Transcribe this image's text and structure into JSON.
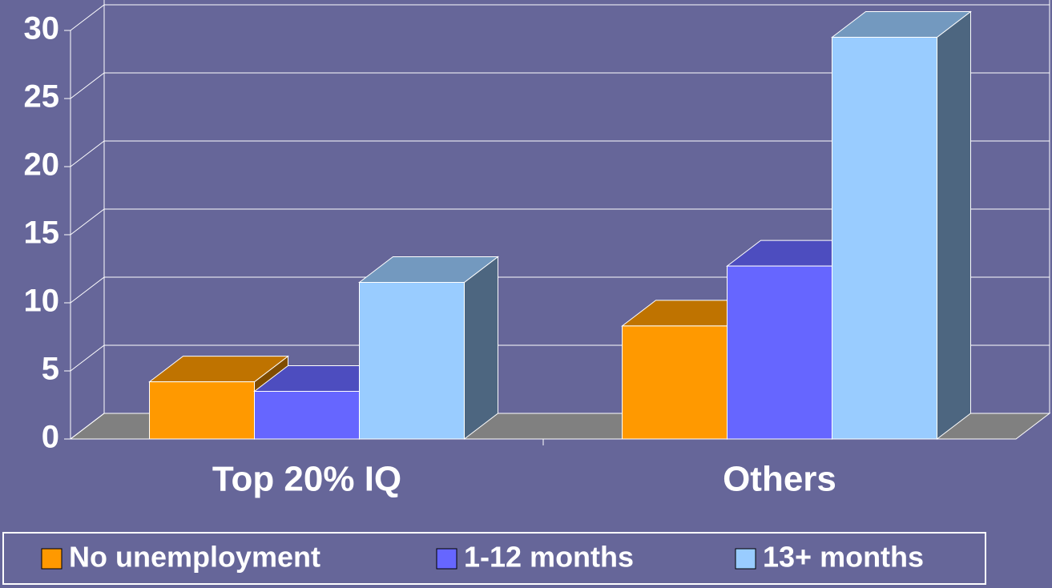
{
  "chart_data": {
    "type": "bar3d",
    "categories": [
      "Top  20% IQ",
      "Others"
    ],
    "series": [
      {
        "name": "No unemployment",
        "color": "#ff9900",
        "values": [
          4.2,
          8.3
        ]
      },
      {
        "name": "1-12 months",
        "color": "#6666ff",
        "values": [
          3.5,
          12.7
        ]
      },
      {
        "name": "13+ months",
        "color": "#99ccff",
        "values": [
          11.5,
          29.5
        ]
      }
    ],
    "ylim": [
      0,
      30
    ],
    "yticks": [
      0,
      5,
      10,
      15,
      20,
      25,
      30
    ],
    "grid": true,
    "legend": "bottom"
  }
}
